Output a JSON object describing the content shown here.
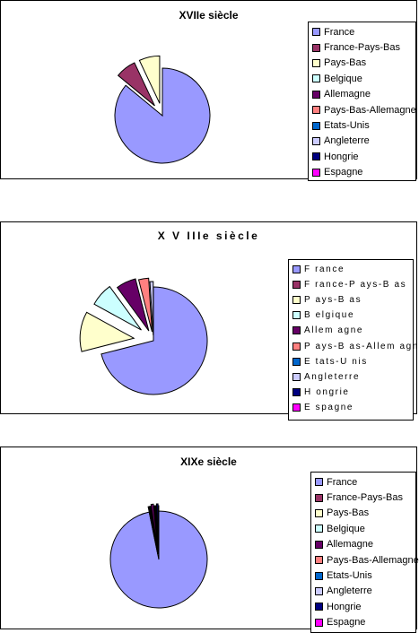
{
  "colors": [
    "#9999ff",
    "#993366",
    "#ffffcc",
    "#ccffff",
    "#660066",
    "#ff8080",
    "#0066cc",
    "#ccccff",
    "#000080",
    "#ff00ff"
  ],
  "chart_data": [
    {
      "type": "pie",
      "title": "XVIIe siècle",
      "legend": [
        "France",
        "France-Pays-Bas",
        "Pays-Bas",
        "Belgique",
        "Allemagne",
        "Pays-Bas-Allemagne",
        "Etats-Unis",
        "Angleterre",
        "Hongrie",
        "Espagne"
      ],
      "values": [
        86,
        7,
        7,
        0,
        0,
        0,
        0,
        0,
        0,
        0
      ],
      "legend_position": "right"
    },
    {
      "type": "pie",
      "title": "X V IIIe  siècle",
      "legend": [
        "F rance",
        "F rance-P ays-B as",
        "P ays-B as",
        "B elgique",
        "Allem agne",
        "P ays-B as-Allem agne",
        "E tats-U nis",
        "Angleterre",
        "H ongrie",
        "E spagne"
      ],
      "values": [
        71,
        0,
        12,
        7,
        6,
        3,
        0,
        1,
        0,
        0
      ],
      "legend_position": "right"
    },
    {
      "type": "pie",
      "title": "XIXe siècle",
      "legend": [
        "France",
        "France-Pays-Bas",
        "Pays-Bas",
        "Belgique",
        "Allemagne",
        "Pays-Bas-Allemagne",
        "Etats-Unis",
        "Angleterre",
        "Hongrie",
        "Espagne"
      ],
      "values": [
        97,
        0.3,
        0.3,
        0.3,
        0.8,
        0.3,
        0.2,
        0.3,
        0.5,
        0.2
      ],
      "legend_position": "right"
    }
  ]
}
